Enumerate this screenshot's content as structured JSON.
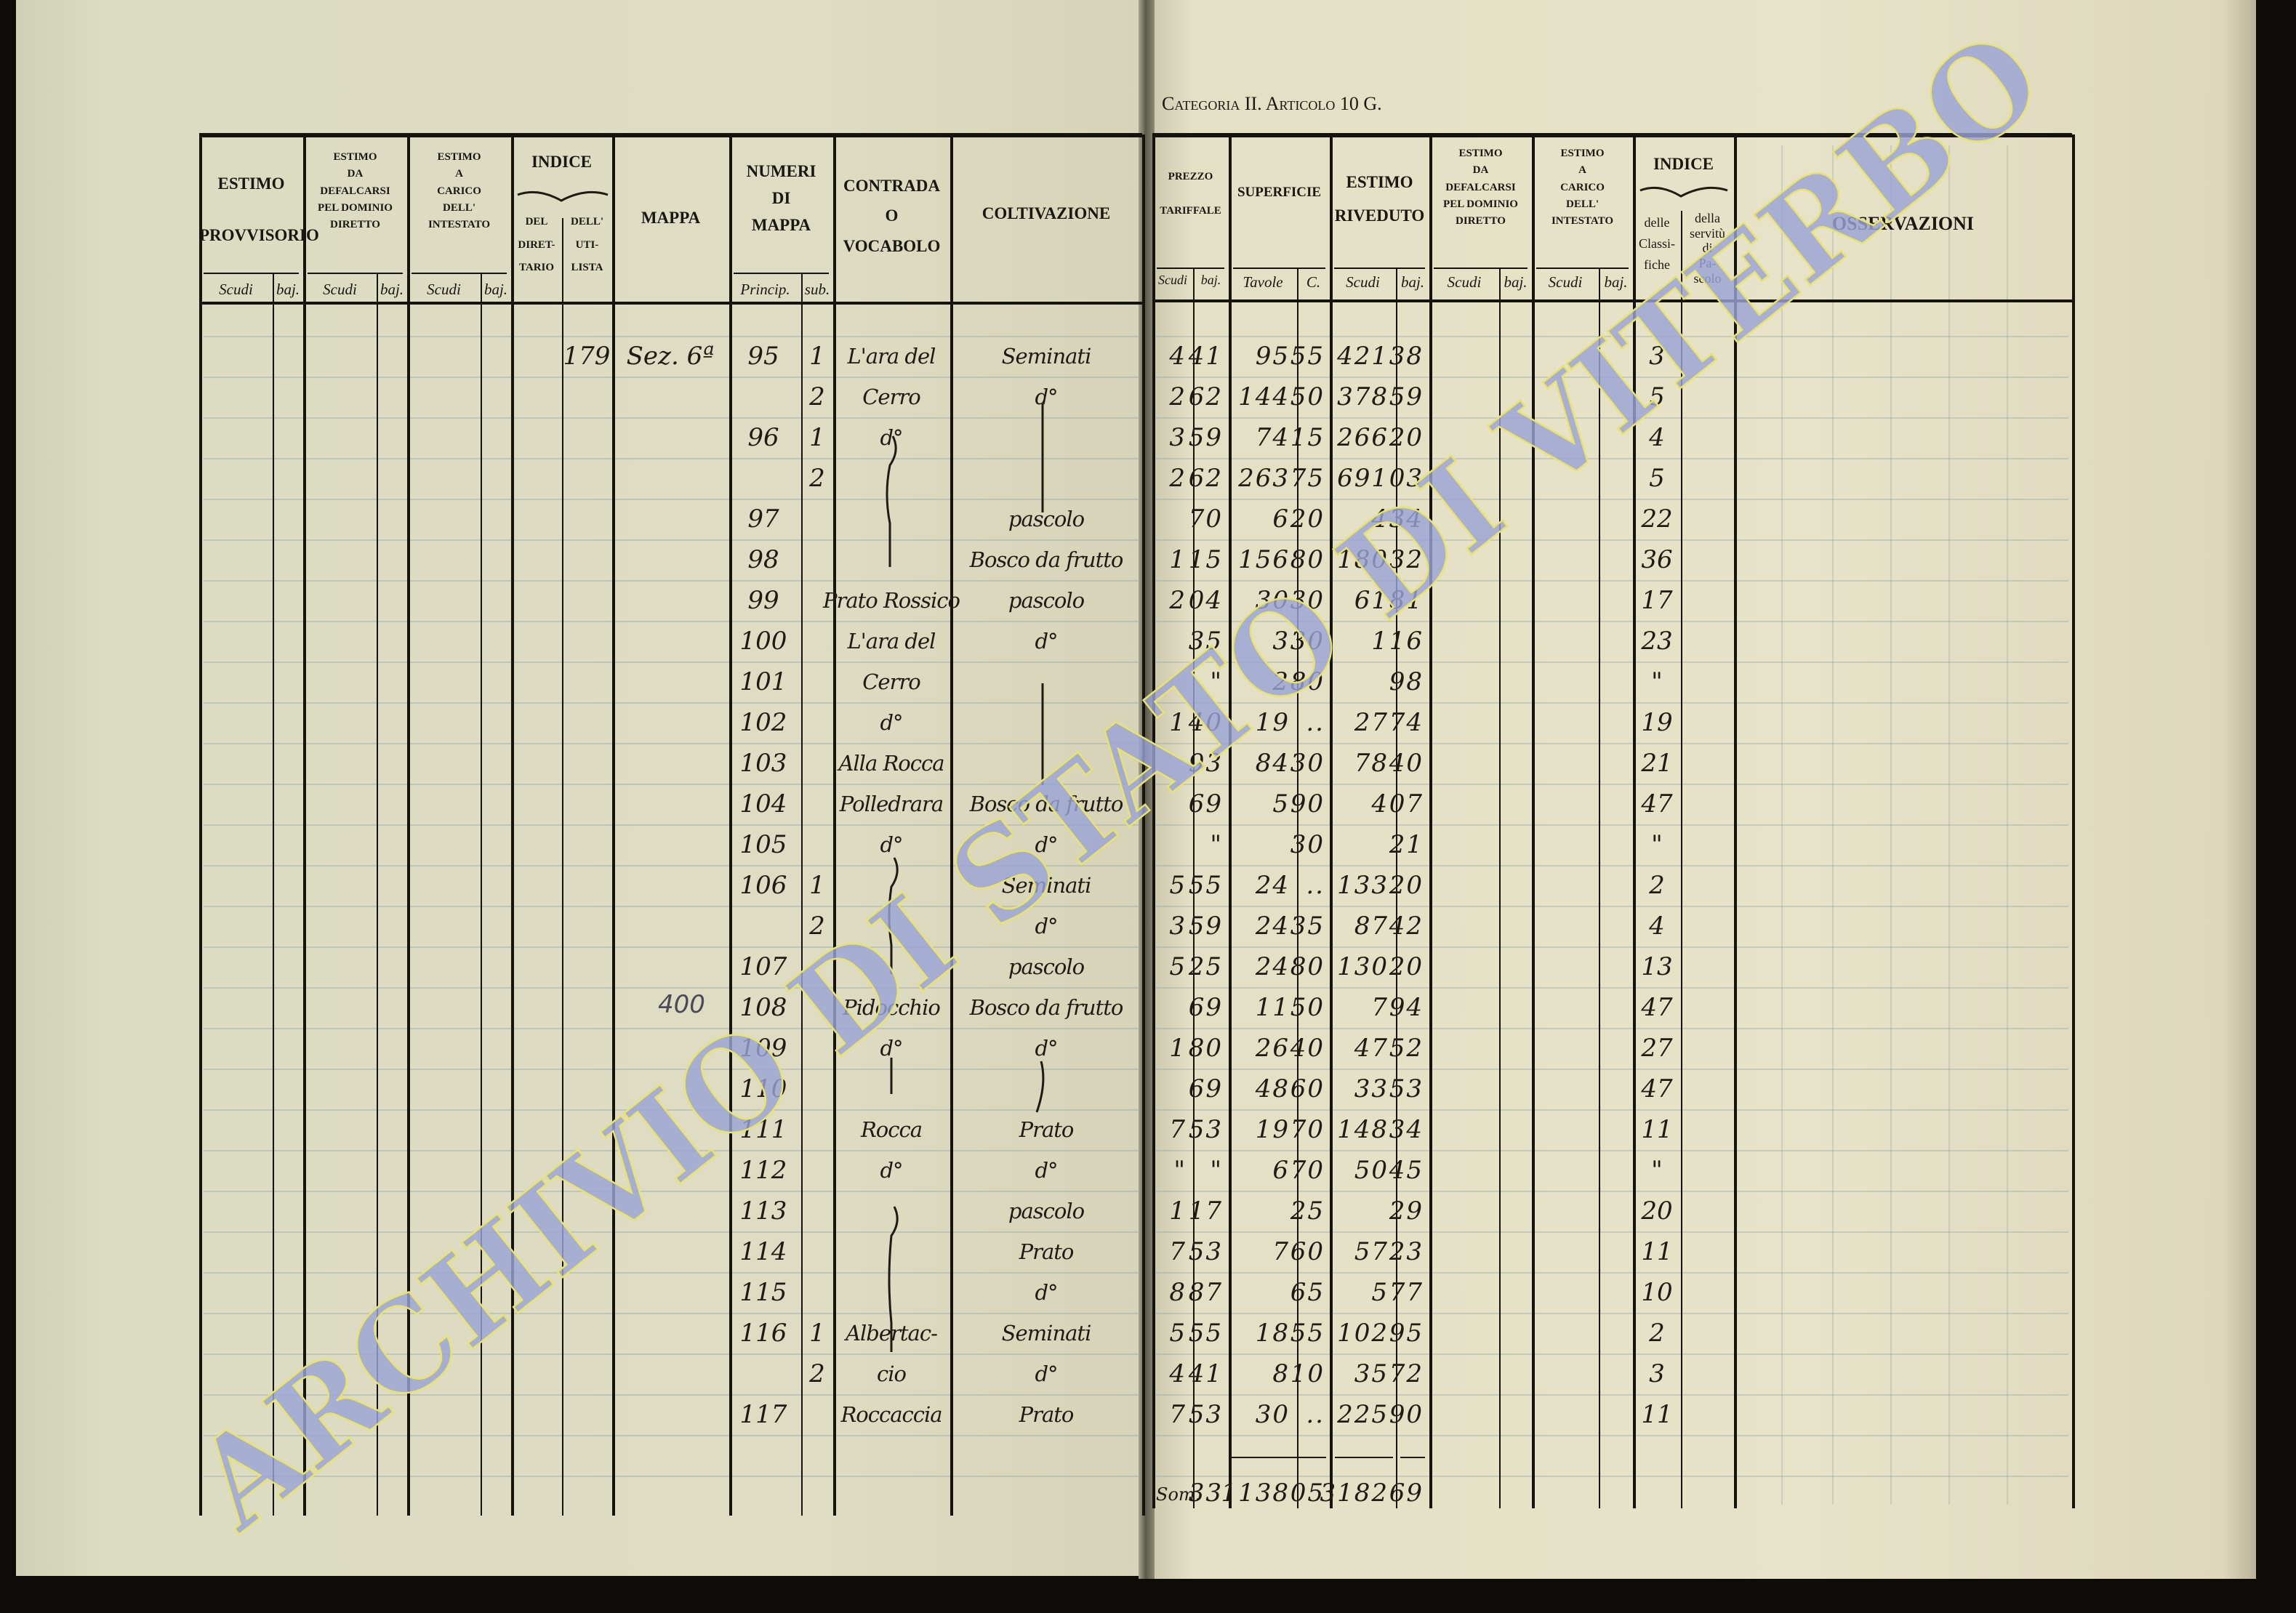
{
  "header": {
    "category": "Categoria II. Articolo 10 G."
  },
  "left_headers": {
    "estimo_provvisorio": "ESTIMO\n\nPROVVISORIO",
    "estimo_defalcarsi": "ESTIMO\nDA\nDEFALCARSI\nPEL DOMINIO\nDIRETTO",
    "estimo_carico": "ESTIMO\nA\nCARICO\nDELL'\nINTESTATO",
    "indice": "INDICE",
    "indice_direttario": "DEL\nDIRET-\nTARIO",
    "indice_utilista": "DELL'\nUTI-\nLISTA",
    "mappa": "MAPPA",
    "numeri_mappa": "NUMERI\nDI\nMAPPA",
    "contrada": "CONTRADA\nO\nVOCABOLO",
    "coltivazione": "COLTIVAZIONE",
    "scudi": "Scudi",
    "baj": "baj.",
    "princip": "Princip.",
    "sub": "sub."
  },
  "right_headers": {
    "prezzo": "PREZZO\n\nTARIFFALE",
    "superficie": "SUPERFICIE",
    "estimo_riveduto": "ESTIMO\nRIVEDUTO",
    "estimo_defalcarsi": "ESTIMO\nDA\nDEFALCARSI\nPEL DOMINIO\nDIRETTO",
    "estimo_carico": "ESTIMO\nA\nCARICO\nDELL'\nINTESTATO",
    "indice": "INDICE",
    "indice_classifiche": "delle\nClassi-\nfiche",
    "indice_servitu": "della\nservitù\ndi\nPa-\nscolo",
    "osservazioni": "OSSERVAZIONI",
    "scudi": "Scudi",
    "baj": "baj.",
    "tavole": "Tavole",
    "c": "C."
  },
  "rows": [
    {
      "indice_utilista": "179",
      "mappa": "Sez. 6ª",
      "princip": "95",
      "sub": "1",
      "contrada": "L'ara del",
      "coltivazione": "Seminati",
      "prezzo_scudi": "4",
      "prezzo_baj": "41",
      "tavole": "95",
      "c": "55",
      "est_scudi": "421",
      "est_baj": "38",
      "classi": "3"
    },
    {
      "sub": "2",
      "contrada": "Cerro",
      "coltivazione": "d°",
      "prezzo_scudi": "2",
      "prezzo_baj": "62",
      "tavole": "144",
      "c": "50",
      "est_scudi": "378",
      "est_baj": "59",
      "classi": "5"
    },
    {
      "princip": "96",
      "sub": "1",
      "contrada": "d°",
      "prezzo_scudi": "3",
      "prezzo_baj": "59",
      "tavole": "74",
      "c": "15",
      "est_scudi": "266",
      "est_baj": "20",
      "classi": "4"
    },
    {
      "sub": "2",
      "prezzo_scudi": "2",
      "prezzo_baj": "62",
      "tavole": "263",
      "c": "75",
      "est_scudi": "691",
      "est_baj": "03",
      "classi": "5"
    },
    {
      "princip": "97",
      "coltivazione": "pascolo",
      "prezzo_baj": "70",
      "tavole": "6",
      "c": "20",
      "est_scudi": "4",
      "est_baj": "34",
      "classi": "22"
    },
    {
      "princip": "98",
      "coltivazione": "Bosco da frutto",
      "prezzo_scudi": "1",
      "prezzo_baj": "15",
      "tavole": "156",
      "c": "80",
      "est_scudi": "180",
      "est_baj": "32",
      "classi": "36"
    },
    {
      "princip": "99",
      "contrada": "Prato Rossico",
      "coltivazione": "pascolo",
      "prezzo_scudi": "2",
      "prezzo_baj": "04",
      "tavole": "30",
      "c": "30",
      "est_scudi": "61",
      "est_baj": "81",
      "classi": "17"
    },
    {
      "princip": "100",
      "contrada": "L'ara del",
      "coltivazione": "d°",
      "prezzo_baj": "35",
      "tavole": "3",
      "c": "30",
      "est_scudi": "1",
      "est_baj": "16",
      "classi": "23"
    },
    {
      "princip": "101",
      "contrada": "Cerro",
      "prezzo_baj": "\"",
      "tavole": "2",
      "c": "80",
      "est_baj": "98",
      "classi": "\""
    },
    {
      "princip": "102",
      "contrada": "d°",
      "prezzo_scudi": "1",
      "prezzo_baj": "40",
      "tavole": "19",
      "c": "..",
      "est_scudi": "27",
      "est_baj": "74",
      "classi": "19"
    },
    {
      "princip": "103",
      "contrada": "Alla Rocca",
      "prezzo_baj": "93",
      "tavole": "84",
      "c": "30",
      "est_scudi": "78",
      "est_baj": "40",
      "classi": "21"
    },
    {
      "princip": "104",
      "contrada": "Polledrara",
      "coltivazione": "Bosco da frutto",
      "prezzo_baj": "69",
      "tavole": "5",
      "c": "90",
      "est_scudi": "4",
      "est_baj": "07",
      "classi": "47"
    },
    {
      "princip": "105",
      "contrada": "d°",
      "coltivazione": "d°",
      "prezzo_baj": "\"",
      "c": "30",
      "est_baj": "21",
      "classi": "\""
    },
    {
      "princip": "106",
      "sub": "1",
      "coltivazione": "Seminati",
      "prezzo_scudi": "5",
      "prezzo_baj": "55",
      "tavole": "24",
      "c": "..",
      "est_scudi": "133",
      "est_baj": "20",
      "classi": "2"
    },
    {
      "sub": "2",
      "coltivazione": "d°",
      "prezzo_scudi": "3",
      "prezzo_baj": "59",
      "tavole": "24",
      "c": "35",
      "est_scudi": "87",
      "est_baj": "42",
      "classi": "4"
    },
    {
      "princip": "107",
      "coltivazione": "pascolo",
      "prezzo_scudi": "5",
      "prezzo_baj": "25",
      "tavole": "24",
      "c": "80",
      "est_scudi": "130",
      "est_baj": "20",
      "classi": "13"
    },
    {
      "princip": "108",
      "contrada": "Pidocchio",
      "coltivazione": "Bosco da frutto",
      "prezzo_baj": "69",
      "tavole": "11",
      "c": "50",
      "est_scudi": "7",
      "est_baj": "94",
      "classi": "47"
    },
    {
      "princip": "109",
      "contrada": "d°",
      "coltivazione": "d°",
      "prezzo_scudi": "1",
      "prezzo_baj": "80",
      "tavole": "26",
      "c": "40",
      "est_scudi": "47",
      "est_baj": "52",
      "classi": "27"
    },
    {
      "princip": "110",
      "prezzo_baj": "69",
      "tavole": "48",
      "c": "60",
      "est_scudi": "33",
      "est_baj": "53",
      "classi": "47"
    },
    {
      "princip": "111",
      "contrada": "Rocca",
      "coltivazione": "Prato",
      "prezzo_scudi": "7",
      "prezzo_baj": "53",
      "tavole": "19",
      "c": "70",
      "est_scudi": "148",
      "est_baj": "34",
      "classi": "11"
    },
    {
      "princip": "112",
      "contrada": "d°",
      "coltivazione": "d°",
      "prezzo_scudi": "\"",
      "prezzo_baj": "\"",
      "tavole": "6",
      "c": "70",
      "est_scudi": "50",
      "est_baj": "45",
      "classi": "\""
    },
    {
      "princip": "113",
      "coltivazione": "pascolo",
      "prezzo_scudi": "1",
      "prezzo_baj": "17",
      "c": "25",
      "est_baj": "29",
      "classi": "20"
    },
    {
      "princip": "114",
      "coltivazione": "Prato",
      "prezzo_scudi": "7",
      "prezzo_baj": "53",
      "tavole": "7",
      "c": "60",
      "est_scudi": "57",
      "est_baj": "23",
      "classi": "11"
    },
    {
      "princip": "115",
      "coltivazione": "d°",
      "prezzo_scudi": "8",
      "prezzo_baj": "87",
      "c": "65",
      "est_scudi": "5",
      "est_baj": "77",
      "classi": "10"
    },
    {
      "princip": "116",
      "sub": "1",
      "contrada": "Albertac-",
      "coltivazione": "Seminati",
      "prezzo_scudi": "5",
      "prezzo_baj": "55",
      "tavole": "18",
      "c": "55",
      "est_scudi": "102",
      "est_baj": "95",
      "classi": "2"
    },
    {
      "sub": "2",
      "contrada": "cio",
      "coltivazione": "d°",
      "prezzo_scudi": "4",
      "prezzo_baj": "41",
      "tavole": "8",
      "c": "10",
      "est_scudi": "35",
      "est_baj": "72",
      "classi": "3"
    },
    {
      "princip": "117",
      "contrada": "Roccaccia",
      "coltivazione": "Prato",
      "prezzo_scudi": "7",
      "prezzo_baj": "53",
      "tavole": "30",
      "c": "..",
      "est_scudi": "225",
      "est_baj": "90",
      "classi": "11"
    }
  ],
  "totals": {
    "label": "Som.",
    "prezzo_baj": "33",
    "tavole": "1138",
    "c": "05",
    "est_scudi": "3182",
    "est_baj": "69"
  },
  "pencil_note": "400",
  "watermark": "ARCHIVIO DI STATO DI VITERBO",
  "colors": {
    "paper": "#e4e0c5",
    "ink": "#1f1b13",
    "watermark_fill": "#9aa3d6",
    "watermark_outline": "#e9e36a"
  }
}
